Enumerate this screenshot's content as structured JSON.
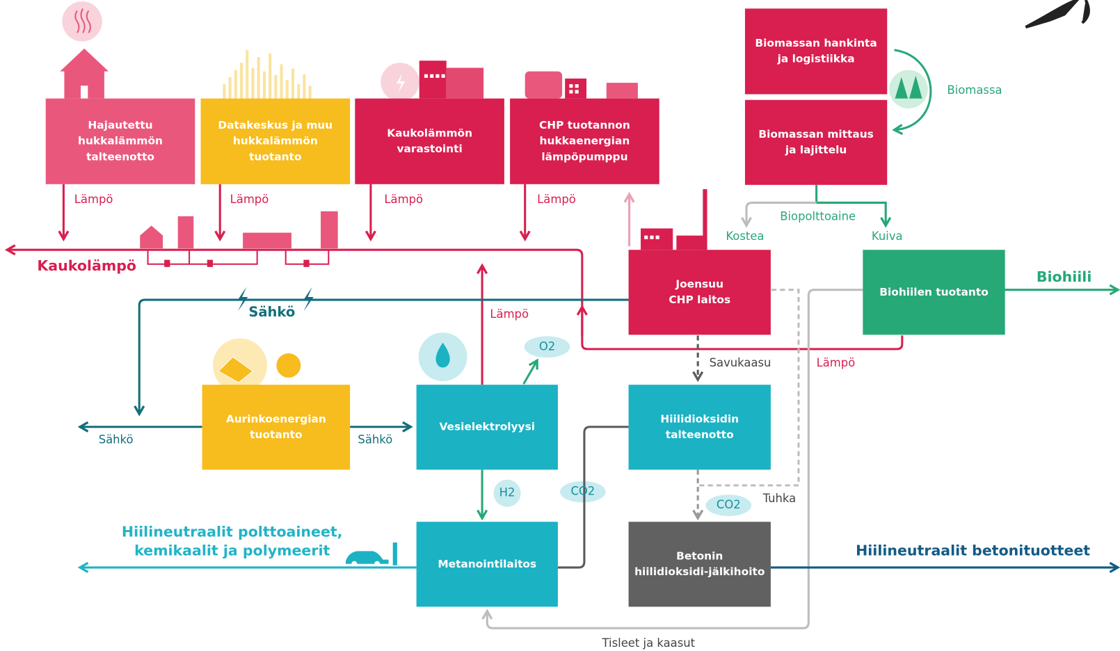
{
  "nodes": [
    {
      "lines": [
        "Hajautettu",
        "hukkalämmön",
        "talteenotto"
      ]
    },
    {
      "lines": [
        "Datakeskus ja muu",
        "hukkalämmön",
        "tuotanto"
      ]
    },
    {
      "lines": [
        "Kaukolämmön",
        "varastointi"
      ]
    },
    {
      "lines": [
        "CHP tuotannon",
        "hukkaenergian",
        "lämpöpumppu"
      ]
    },
    {
      "lines": [
        "Biomassan hankinta",
        "ja logistiikka"
      ]
    },
    {
      "lines": [
        "Biomassan mittaus",
        "ja lajittelu"
      ]
    },
    {
      "lines": [
        "Joensuu",
        "CHP laitos"
      ]
    },
    {
      "lines": [
        "Biohiilen tuotanto"
      ]
    },
    {
      "lines": [
        "Aurinkoenergian",
        "tuotanto"
      ]
    },
    {
      "lines": [
        "Vesielektrolyysi"
      ]
    },
    {
      "lines": [
        "Hiilidioksidin",
        "talteenotto"
      ]
    },
    {
      "lines": [
        "Metanointilaitos"
      ]
    },
    {
      "lines": [
        "Betonin",
        "hiilidioksidi-jälkihoito"
      ]
    }
  ],
  "edge_labels": [
    "Lämpö",
    "Lämpö",
    "Lämpö",
    "Lämpö",
    "Kaukolämpö",
    "Sähkö",
    "Lämpö",
    "O2",
    "Savukaasu",
    "Lämpö",
    "Biomassa",
    "Biopolttoaine",
    "Kostea",
    "Kuiva",
    "Biohiili",
    "Sähkö",
    "Sähkö",
    "H2",
    "CO2",
    "CO2",
    "Tuhka",
    "Hiilineutraalit betonituotteet",
    "Tisleet ja kaasut"
  ],
  "outputs": [
    {
      "lines": [
        "Hiilineutraalit polttoaineet,",
        "kemikaalit ja polymeerit"
      ]
    }
  ]
}
